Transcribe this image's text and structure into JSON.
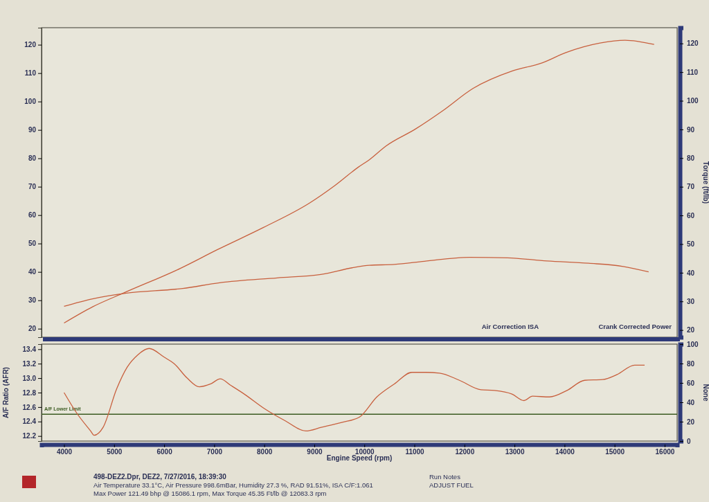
{
  "chart_data": [
    {
      "type": "line",
      "y2label": "Torque (ft/lb)",
      "xlim": [
        3550,
        16250
      ],
      "ylim": [
        17,
        126
      ],
      "yticks": [
        20,
        30,
        40,
        50,
        60,
        70,
        80,
        90,
        100,
        110,
        120
      ],
      "y2lim": [
        17.5,
        125.5
      ],
      "y2ticks": [
        20,
        30,
        40,
        50,
        60,
        70,
        80,
        90,
        100,
        110,
        120
      ],
      "tick_labels": "y",
      "grid": false,
      "marker": "none",
      "line_style": "solid",
      "annotations": [
        "Air Correction ISA",
        "Crank Corrected Power"
      ],
      "series": [
        {
          "color": "#c8603e",
          "x": [
            4000,
            4570,
            5220,
            6330,
            7060,
            7980,
            8910,
            9410,
            9880,
            10100,
            10430,
            11020,
            11570,
            12170,
            12960,
            13550,
            14020,
            14710,
            15210,
            15790
          ],
          "values": [
            22,
            27.7,
            32.8,
            41.3,
            47.8,
            55.6,
            64.3,
            70.4,
            76.9,
            79.5,
            84.3,
            90.3,
            96.8,
            104.6,
            110.8,
            113.6,
            117.2,
            120.6,
            121.6,
            120.1
          ]
        },
        {
          "color": "#c8603e",
          "axis": "y2",
          "x": [
            4000,
            4570,
            5220,
            6370,
            7110,
            8260,
            9130,
            9780,
            10100,
            10600,
            11200,
            12100,
            12860,
            13650,
            14480,
            15170,
            15680
          ],
          "values": [
            28.3,
            30.9,
            32.8,
            34.5,
            36.5,
            38.2,
            39.4,
            41.8,
            42.6,
            42.9,
            44,
            45.4,
            45.2,
            44.1,
            43.3,
            42.2,
            40.3
          ]
        }
      ]
    },
    {
      "type": "line",
      "xlabel": "Engine Speed (rpm)",
      "ylabel": "A/F Ratio (AFR)",
      "y2label": "None",
      "xlim": [
        3550,
        16250
      ],
      "xticks": [
        4000,
        5000,
        6000,
        7000,
        8000,
        9000,
        10000,
        11000,
        12000,
        13000,
        14000,
        15000,
        16000
      ],
      "ylim": [
        12.13,
        13.47
      ],
      "yticks": [
        {
          "value": 12.2,
          "label": "12.2"
        },
        {
          "value": 12.4,
          "label": "12.4"
        },
        {
          "value": 12.6,
          "label": "12.6"
        },
        {
          "value": 12.8,
          "label": "12.8"
        },
        {
          "value": 13,
          "label": "13.0"
        },
        {
          "value": 13.2,
          "label": "13.2"
        },
        {
          "value": 13.4,
          "label": "13.4"
        }
      ],
      "y2lim": [
        0,
        100
      ],
      "y2ticks": [
        0,
        20,
        40,
        60,
        80,
        100
      ],
      "grid": false,
      "marker": "none",
      "line_style": "solid",
      "ref_lines": [
        {
          "axis": "y",
          "value": 12.5,
          "label": "A/F Lower Limit",
          "color": "#3a5a20"
        }
      ],
      "annotations": [
        "498-DEZ2.Dpr,  DEZ2,  7/27/2016,  18:39:30",
        "Air Temperature 33.1°C, Air Pressure 998.6mBar, Humidity 27.3 %, RAD 91.51%,   ISA  C/F:1.061",
        "Max Power 121.49 bhp @ 15086.1 rpm, Max Torque 45.35 Ft/lb @ 12083.3 rpm",
        "Run Notes",
        "ADJUST FUEL"
      ],
      "series": [
        {
          "color": "#c8603e",
          "x": [
            4000,
            4250,
            4530,
            4600,
            4780,
            5050,
            5260,
            5470,
            5700,
            6000,
            6200,
            6460,
            6700,
            6930,
            7120,
            7330,
            7600,
            8000,
            8420,
            8830,
            9140,
            9560,
            9900,
            10250,
            10600,
            10950,
            11220,
            11500,
            11900,
            12330,
            12600,
            12950,
            13190,
            13360,
            13700,
            14050,
            14400,
            14760,
            15050,
            15400,
            15600
          ],
          "values": [
            12.8,
            12.52,
            12.27,
            12.21,
            12.32,
            12.85,
            13.15,
            13.32,
            13.41,
            13.29,
            13.2,
            13,
            12.88,
            12.92,
            12.99,
            12.9,
            12.78,
            12.58,
            12.41,
            12.27,
            12.32,
            12.39,
            12.46,
            12.74,
            12.92,
            13.08,
            13.08,
            13.07,
            12.97,
            12.84,
            12.83,
            12.78,
            12.69,
            12.75,
            12.74,
            12.83,
            12.97,
            12.98,
            13.05,
            13.18,
            13.18
          ]
        }
      ]
    }
  ]
}
